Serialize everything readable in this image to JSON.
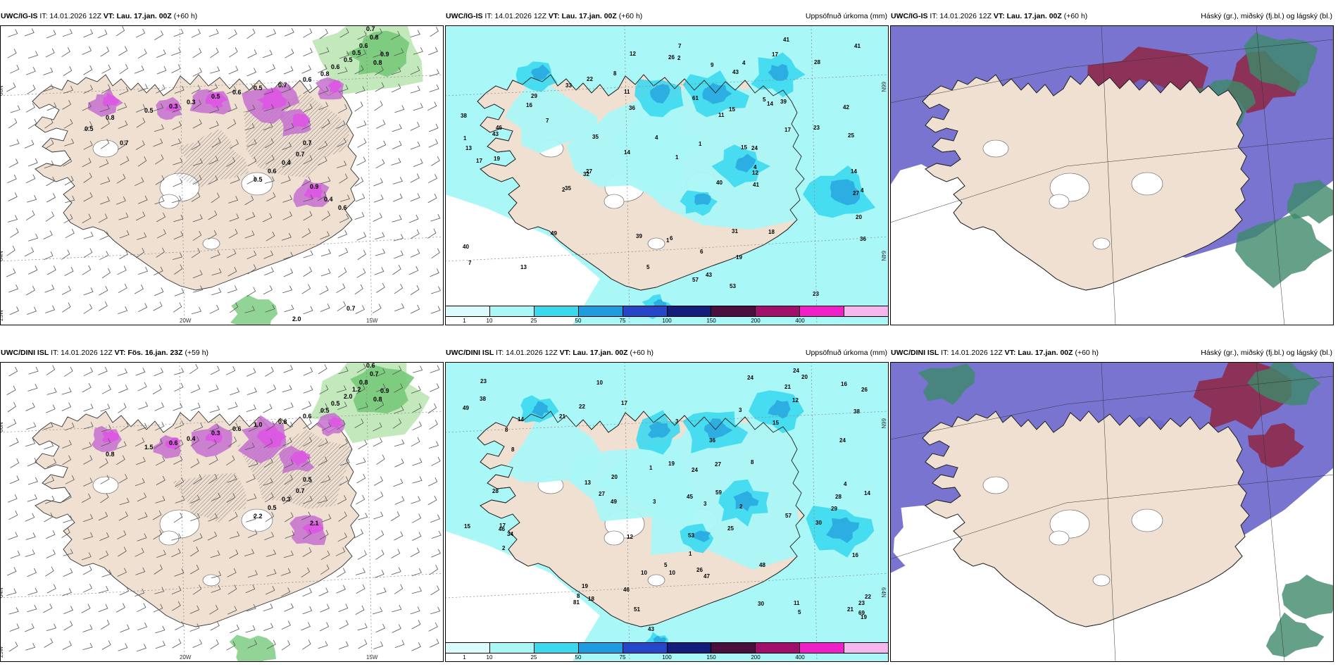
{
  "colors": {
    "land": "#efe0d2",
    "sea": "#ffffff",
    "precip_light": "#aaf7f7",
    "precip_mid": "#3cd9ee",
    "precip_dark": "#2aa8e0",
    "snow_purple": "#c66fd0",
    "snow_magenta": "#e050e6",
    "green_light": "#bde5b4",
    "green_mid": "#77c97a",
    "cloud_high": "#6c68cc",
    "cloud_mid": "#8e2b4a",
    "cloud_green": "#3d8a6a"
  },
  "rows": [
    {
      "panels": [
        {
          "id": "uwc-igis-wind",
          "model": "UWC/IG-IS",
          "it": "IT: 14.01.2026 12Z",
          "vt_label": "VT:",
          "vt": "Lau. 17.jan. 00Z",
          "lead": "(+60 h)",
          "right_title": "",
          "grid_labels": [
            "66N",
            "64N",
            "25W",
            "20W",
            "15W"
          ],
          "values": [
            "0.7",
            "0.8",
            "0.6",
            "0.5",
            "0.5",
            "0.9",
            "0.8",
            "0.6",
            "0.8",
            "0.6",
            "0.7",
            "0.5",
            "0.6",
            "0.5",
            "0.3",
            "0.3",
            "0.5",
            "0.8",
            "0.7",
            "0.7",
            "0.4",
            "0.6",
            "0.5",
            "0.9",
            "0.4",
            "0.6",
            "0.5",
            "0.7",
            "2.0",
            "0.7"
          ]
        },
        {
          "id": "uwc-igis-precip",
          "model": "UWC/IG-IS",
          "it": "IT: 14.01.2026 12Z",
          "vt_label": "VT:",
          "vt": "Lau. 17.jan. 00Z",
          "lead": "(+60 h)",
          "right_title": "Uppsöfnuð úrkoma (mm)",
          "grid_labels": [
            "66N",
            "64N"
          ],
          "values": [
            "24",
            "22",
            "53",
            "61",
            "16",
            "15",
            "14",
            "17",
            "7",
            "6",
            "6",
            "40",
            "36",
            "19",
            "33",
            "57",
            "43",
            "39",
            "8",
            "11",
            "26",
            "29",
            "46",
            "41",
            "32",
            "35",
            "25",
            "43",
            "31",
            "27",
            "28",
            "39",
            "49",
            "41",
            "36",
            "13",
            "12",
            "9",
            "7",
            "5",
            "4",
            "1",
            "1",
            "2",
            "1",
            "2",
            "4",
            "43",
            "4",
            "23",
            "23",
            "40",
            "38",
            "42",
            "41",
            "35",
            "7",
            "11",
            "14",
            "17",
            "12",
            "14",
            "17",
            "19",
            "20",
            "15",
            "18",
            "27",
            "13",
            "5",
            "4",
            "1"
          ],
          "colorbar": [
            "1",
            "10",
            "25",
            "50",
            "75",
            "100",
            "150",
            "200",
            "400"
          ]
        },
        {
          "id": "uwc-igis-clouds",
          "model": "UWC/IG-IS",
          "it": "IT: 14.01.2026 12Z",
          "vt_label": "VT:",
          "vt": "Lau. 17.jan. 00Z",
          "lead": "(+60 h)",
          "right_title": "Háský (gr.), miðský (fj.bl.) og lágský (bl.)"
        }
      ]
    },
    {
      "panels": [
        {
          "id": "uwc-dini-wind",
          "model": "UWC/DINI ISL",
          "it": "IT: 14.01.2026 12Z",
          "vt_label": "VT:",
          "vt": "Fös. 16.jan. 23Z",
          "lead": "(+59 h)",
          "right_title": "",
          "grid_labels": [
            "66N",
            "64N",
            "25W",
            "20W",
            "15W"
          ],
          "values": [
            "0.6",
            "0.7",
            "0.8",
            "1.2",
            "2.0",
            "0.9",
            "0.8",
            "0.5",
            "0.5",
            "0.6",
            "0.8",
            "1.0",
            "0.6",
            "0.3",
            "0.4",
            "0.6",
            "1.5",
            "0.8",
            "0.5",
            "0.7",
            "0.3",
            "0.5",
            "2.2",
            "2.1"
          ]
        },
        {
          "id": "uwc-dini-precip",
          "model": "UWC/DINI ISL",
          "it": "IT: 14.01.2026 12Z",
          "vt_label": "VT:",
          "vt": "Lau. 17.jan. 00Z",
          "lead": "(+60 h)",
          "right_title": "Uppsöfnuð úrkoma (mm)",
          "grid_labels": [
            "66N",
            "64N"
          ],
          "values": [
            "20",
            "20",
            "16",
            "81",
            "19",
            "49",
            "5",
            "2",
            "3",
            "5",
            "8",
            "24",
            "26",
            "24",
            "14",
            "17",
            "14",
            "38",
            "48",
            "12",
            "34",
            "57",
            "49",
            "19",
            "27",
            "46",
            "53",
            "45",
            "46",
            "47",
            "24",
            "21",
            "38",
            "23",
            "19",
            "26",
            "22",
            "28",
            "22",
            "23",
            "17",
            "18",
            "12",
            "15",
            "13",
            "16",
            "10",
            "8",
            "4",
            "43",
            "3",
            "3",
            "1",
            "1",
            "3",
            "2",
            "10",
            "11",
            "10",
            "21",
            "30",
            "28",
            "30",
            "15",
            "21",
            "25",
            "36",
            "27",
            "29",
            "69",
            "59",
            "24",
            "51",
            "8",
            "8"
          ],
          "colorbar": [
            "1",
            "10",
            "25",
            "50",
            "75",
            "100",
            "150",
            "200",
            "400"
          ]
        },
        {
          "id": "uwc-dini-clouds",
          "model": "UWC/DINI ISL",
          "it": "IT: 14.01.2026 12Z",
          "vt_label": "VT:",
          "vt": "Lau. 17.jan. 00Z",
          "lead": "(+60 h)",
          "right_title": "Háský (gr.), miðský (fj.bl.) og lágský (bl.)"
        }
      ]
    }
  ],
  "colorbar_colors": [
    "#dafcfc",
    "#aaf7f7",
    "#3cd9ee",
    "#1f9be0",
    "#2546c8",
    "#131d7a",
    "#4a0f3c",
    "#a0106a",
    "#f020c8",
    "#f6b6ee"
  ]
}
